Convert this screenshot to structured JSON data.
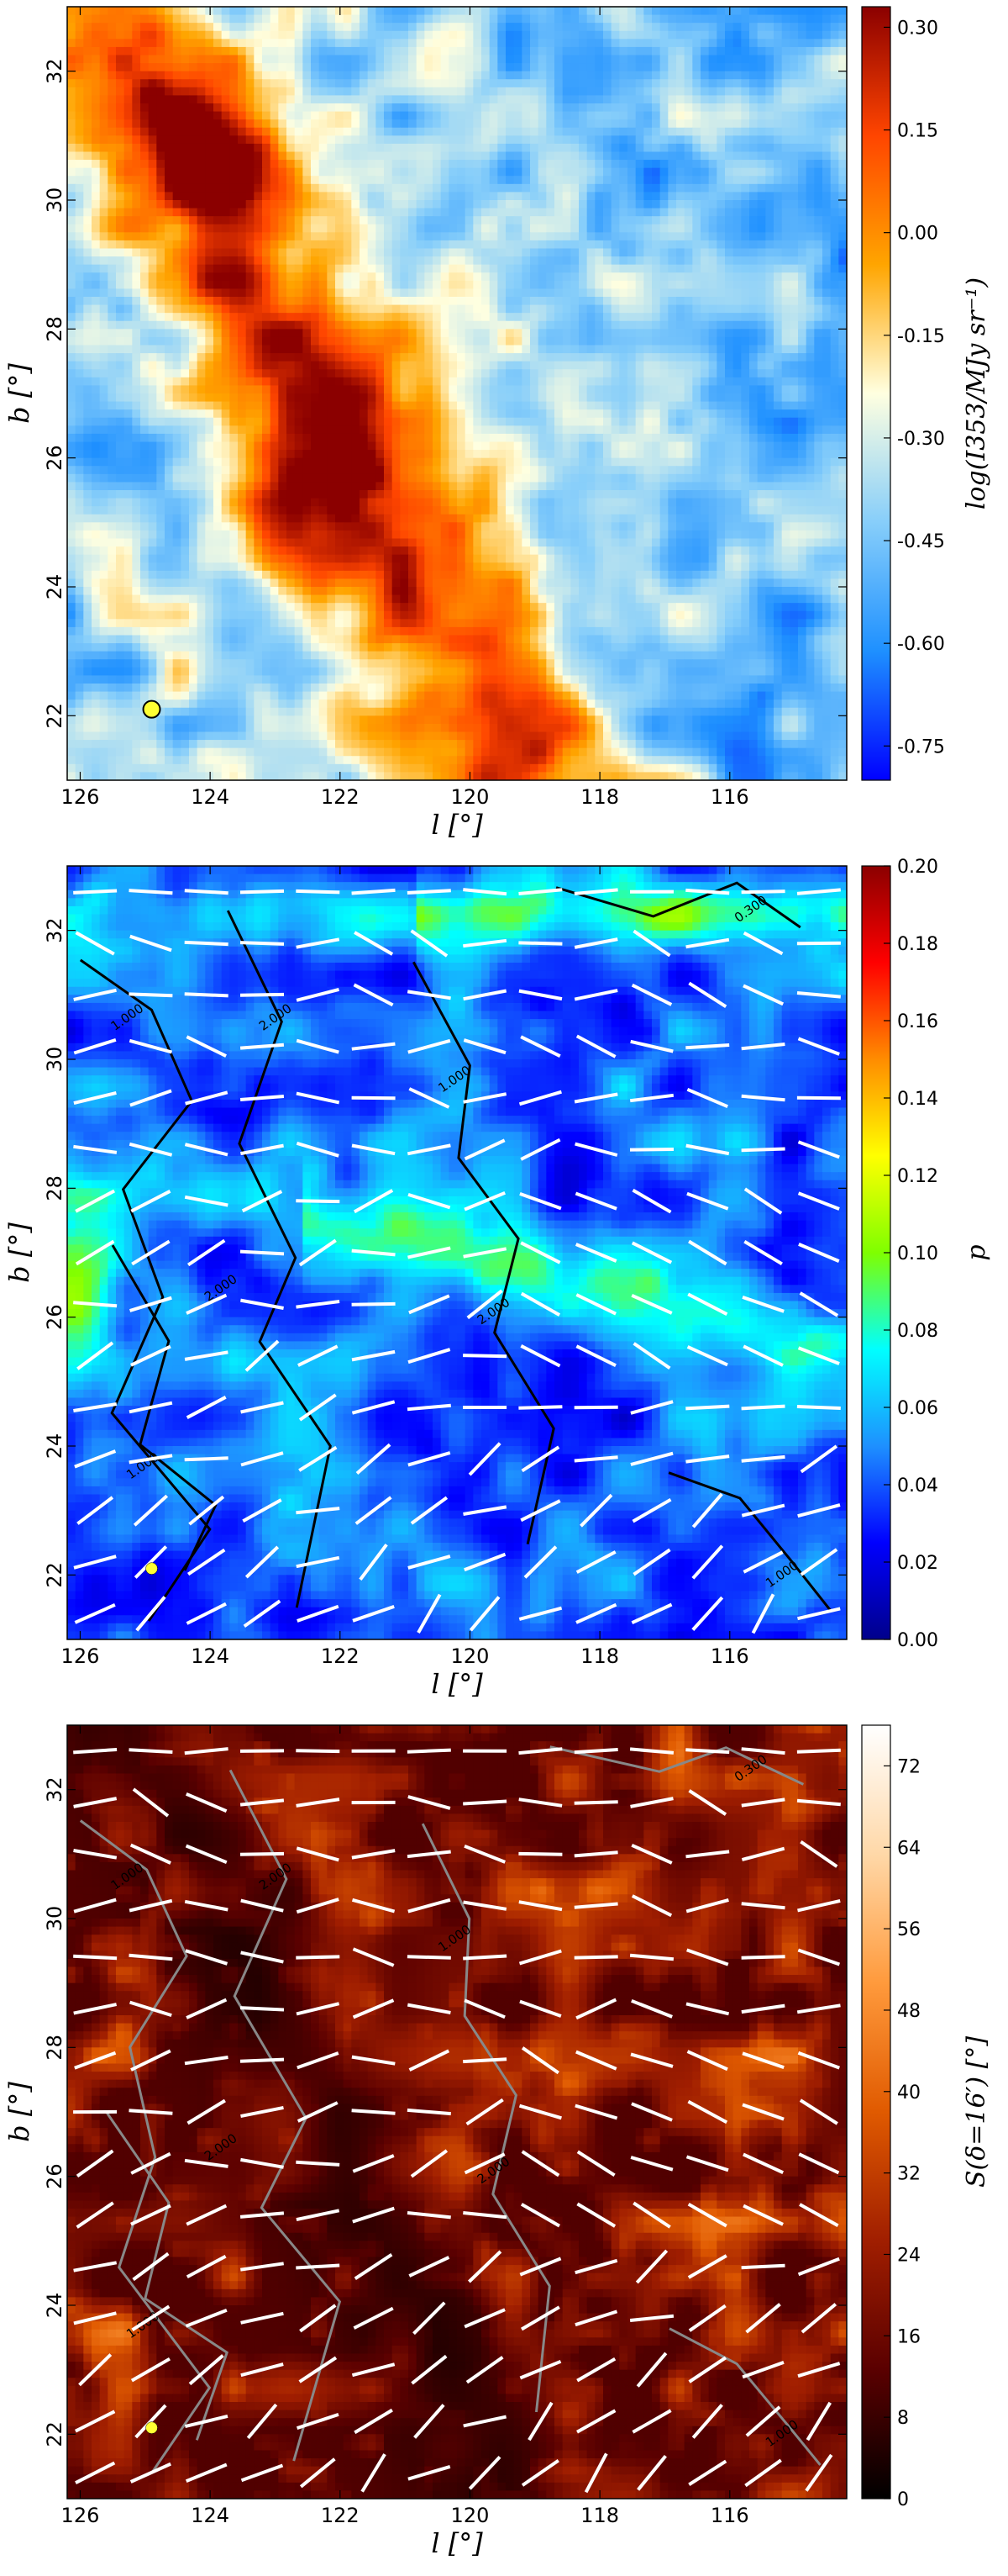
{
  "chart_data": [
    {
      "type": "heatmap",
      "panel": "top",
      "quantity": "dust intensity map",
      "xlabel": "l [°]",
      "ylabel": "b [°]",
      "xlim": [
        126.2,
        114.2
      ],
      "ylim": [
        21.0,
        33.0
      ],
      "xticks": [
        126,
        124,
        122,
        120,
        118,
        116
      ],
      "yticks": [
        22,
        24,
        26,
        28,
        30,
        32
      ],
      "colorbar": {
        "label": "log(I353/MJy sr⁻¹)",
        "range": [
          -0.8,
          0.33
        ],
        "ticks": [
          "0.30",
          "0.15",
          "0.00",
          "-0.15",
          "-0.30",
          "-0.45",
          "-0.60",
          "-0.75"
        ],
        "tick_values": [
          0.3,
          0.15,
          0.0,
          -0.15,
          -0.3,
          -0.45,
          -0.6,
          -0.75
        ],
        "colormap": [
          "#0000ff",
          "#1e90ff",
          "#87cefa",
          "#ffffe0",
          "#ffa500",
          "#ff4500",
          "#8b0000"
        ]
      },
      "marker": {
        "l": 124.9,
        "b": 22.1,
        "color": "#ffff33"
      },
      "features": [
        {
          "description": "bright filament ridge",
          "peak_l": 123.3,
          "peak_b": 24.8
        },
        {
          "description": "bright knot",
          "peak_l": 124.5,
          "peak_b": 30.4
        }
      ]
    },
    {
      "type": "heatmap",
      "panel": "middle",
      "quantity": "polarization fraction",
      "xlabel": "l [°]",
      "ylabel": "b [°]",
      "xlim": [
        126.2,
        114.2
      ],
      "ylim": [
        21.0,
        33.0
      ],
      "xticks": [
        126,
        124,
        122,
        120,
        118,
        116
      ],
      "yticks": [
        22,
        24,
        26,
        28,
        30,
        32
      ],
      "colorbar": {
        "label": "p",
        "range": [
          0.0,
          0.2
        ],
        "ticks": [
          "0.20",
          "0.18",
          "0.16",
          "0.14",
          "0.12",
          "0.10",
          "0.08",
          "0.06",
          "0.04",
          "0.02",
          "0.00"
        ],
        "tick_values": [
          0.2,
          0.18,
          0.16,
          0.14,
          0.12,
          0.1,
          0.08,
          0.06,
          0.04,
          0.02,
          0.0
        ],
        "colormap": [
          "#00008b",
          "#0000ff",
          "#1e90ff",
          "#00ffff",
          "#7fff00",
          "#ffff00",
          "#ff8c00",
          "#ff0000",
          "#8b0000"
        ]
      },
      "contours": {
        "color": "#000000",
        "levels": [
          "0.300",
          "1.000",
          "2.000"
        ]
      },
      "vectors": {
        "color": "#ffffff"
      },
      "marker": {
        "l": 124.9,
        "b": 22.1,
        "color": "#ffff33"
      }
    },
    {
      "type": "heatmap",
      "panel": "bottom",
      "quantity": "polarization angle dispersion",
      "xlabel": "l [°]",
      "ylabel": "b [°]",
      "xlim": [
        126.2,
        114.2
      ],
      "ylim": [
        21.0,
        33.0
      ],
      "xticks": [
        126,
        124,
        122,
        120,
        118,
        116
      ],
      "yticks": [
        22,
        24,
        26,
        28,
        30,
        32
      ],
      "colorbar": {
        "label": "S(δ=16′) [°]",
        "range": [
          0,
          76
        ],
        "ticks": [
          "72",
          "64",
          "56",
          "48",
          "40",
          "32",
          "24",
          "16",
          "8",
          "0"
        ],
        "tick_values": [
          72,
          64,
          56,
          48,
          40,
          32,
          24,
          16,
          8,
          0
        ],
        "colormap": [
          "#000000",
          "#5a0000",
          "#a01e00",
          "#e05a00",
          "#ff9a3c",
          "#ffd8a8",
          "#ffffff"
        ]
      },
      "contours": {
        "color": "#888888",
        "levels": [
          "0.300",
          "1.000",
          "2.000"
        ]
      },
      "vectors": {
        "color": "#ffffff"
      },
      "marker": {
        "l": 124.9,
        "b": 22.1,
        "color": "#ffff33"
      }
    }
  ]
}
